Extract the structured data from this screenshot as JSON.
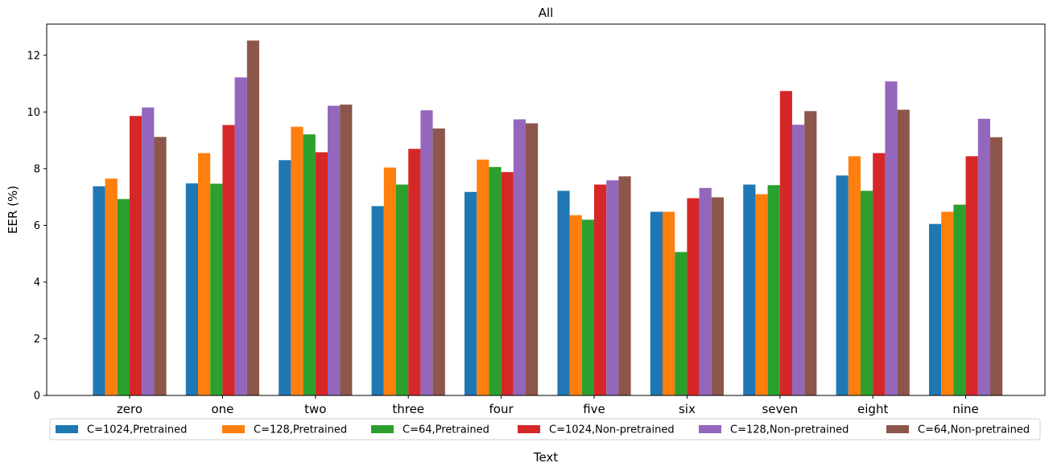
{
  "chart_data": {
    "type": "bar",
    "title": "All",
    "xlabel": "Text",
    "ylabel": "EER (%)",
    "ylim": [
      0,
      13.1
    ],
    "yticks": [
      0,
      2,
      4,
      6,
      8,
      10,
      12
    ],
    "categories": [
      "zero",
      "one",
      "two",
      "three",
      "four",
      "five",
      "six",
      "seven",
      "eight",
      "nine"
    ],
    "legend_position": "bottom",
    "grid": false,
    "series": [
      {
        "name": "C=1024,Pretrained",
        "color": "#1f77b4",
        "values": [
          7.38,
          7.48,
          8.3,
          6.68,
          7.18,
          7.22,
          6.48,
          7.44,
          7.76,
          6.05
        ]
      },
      {
        "name": "C=128,Pretrained",
        "color": "#ff7f0e",
        "values": [
          7.65,
          8.55,
          9.48,
          8.04,
          8.32,
          6.36,
          6.48,
          7.1,
          8.44,
          6.48
        ]
      },
      {
        "name": "C=64,Pretrained",
        "color": "#2ca02c",
        "values": [
          6.93,
          7.47,
          9.21,
          7.44,
          8.06,
          6.2,
          5.06,
          7.42,
          7.22,
          6.73
        ]
      },
      {
        "name": "C=1024,Non-pretrained",
        "color": "#d62728",
        "values": [
          9.86,
          9.54,
          8.58,
          8.7,
          7.88,
          7.44,
          6.96,
          10.74,
          8.55,
          8.44
        ]
      },
      {
        "name": "C=128,Non-pretrained",
        "color": "#9467bd",
        "values": [
          10.16,
          11.22,
          10.22,
          10.06,
          9.74,
          7.59,
          7.32,
          9.55,
          11.08,
          9.76
        ]
      },
      {
        "name": "C=64,Non-pretrained",
        "color": "#8c564b",
        "values": [
          9.12,
          12.52,
          10.26,
          9.42,
          9.6,
          7.73,
          6.99,
          10.03,
          10.08,
          9.11
        ]
      }
    ]
  }
}
